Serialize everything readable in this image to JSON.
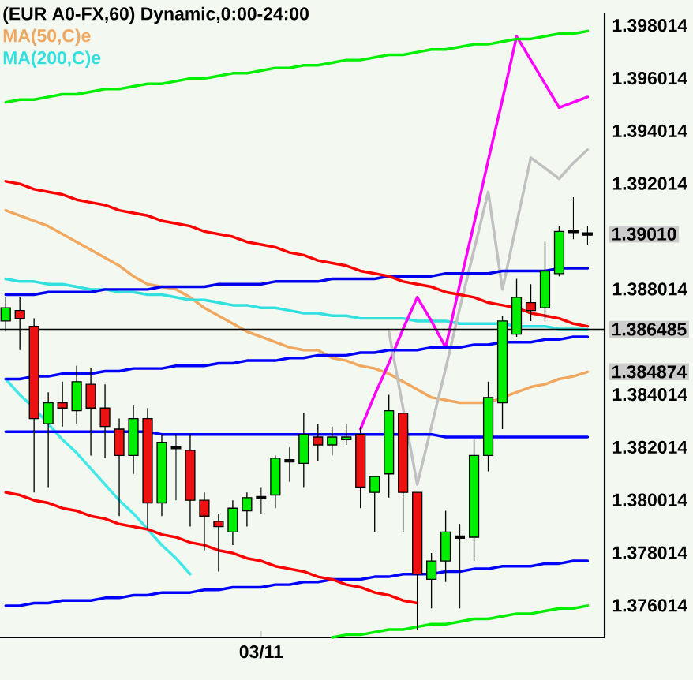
{
  "chart_data": {
    "type": "candlestick",
    "title": "(EUR A0-FX,60) Dynamic,0:00-24:00",
    "categories": [
      null,
      null,
      null,
      null,
      null,
      null,
      null,
      null,
      null,
      null,
      null,
      null,
      null,
      null,
      null,
      null,
      null,
      null,
      "03/11",
      null,
      null,
      null,
      null,
      null,
      null,
      null,
      null,
      null,
      null,
      null,
      null,
      null,
      null,
      null,
      null,
      null,
      null,
      null,
      null,
      null,
      null,
      null
    ],
    "ohlc": [
      [
        1.3868,
        1.3877,
        1.3864,
        1.3873
      ],
      [
        1.3872,
        1.3877,
        1.3857,
        1.3869
      ],
      [
        1.3866,
        1.3869,
        1.3803,
        1.3831
      ],
      [
        1.3829,
        1.3841,
        1.3805,
        1.3837
      ],
      [
        1.3837,
        1.3845,
        1.3828,
        1.3835
      ],
      [
        1.3834,
        1.3851,
        1.3829,
        1.3845
      ],
      [
        1.3844,
        1.385,
        1.3817,
        1.3835
      ],
      [
        1.3835,
        1.3844,
        1.3816,
        1.3828
      ],
      [
        1.3827,
        1.3831,
        1.3794,
        1.3817
      ],
      [
        1.3817,
        1.3836,
        1.381,
        1.3831
      ],
      [
        1.3831,
        1.3835,
        1.3789,
        1.3799
      ],
      [
        1.3799,
        1.3825,
        1.3794,
        1.3822
      ],
      [
        1.382,
        1.3825,
        1.38,
        1.382
      ],
      [
        1.3819,
        1.3825,
        1.379,
        1.38
      ],
      [
        1.38,
        1.3803,
        1.3781,
        1.3794
      ],
      [
        1.3792,
        1.3795,
        1.3773,
        1.379
      ],
      [
        1.3788,
        1.38,
        1.3783,
        1.3797
      ],
      [
        1.3796,
        1.3803,
        1.379,
        1.3801
      ],
      [
        1.3801,
        1.3805,
        1.3795,
        1.3801
      ],
      [
        1.3802,
        1.3817,
        1.3797,
        1.3816
      ],
      [
        1.3815,
        1.382,
        1.3807,
        1.3815
      ],
      [
        1.3814,
        1.3833,
        1.3805,
        1.3825
      ],
      [
        1.3824,
        1.3829,
        1.3815,
        1.3821
      ],
      [
        1.3821,
        1.3828,
        1.3817,
        1.3824
      ],
      [
        1.3823,
        1.3829,
        1.3821,
        1.3824
      ],
      [
        1.3825,
        1.3828,
        1.3797,
        1.3805
      ],
      [
        1.3803,
        1.3809,
        1.3788,
        1.3809
      ],
      [
        1.381,
        1.384,
        1.3801,
        1.3834
      ],
      [
        1.3833,
        1.3833,
        1.3788,
        1.3803
      ],
      [
        1.3803,
        1.3803,
        1.3751,
        1.3772
      ],
      [
        1.377,
        1.378,
        1.3759,
        1.3777
      ],
      [
        1.3777,
        1.3796,
        1.3769,
        1.3788
      ],
      [
        1.3786,
        1.3791,
        1.3759,
        1.3786
      ],
      [
        1.3786,
        1.3823,
        1.3777,
        1.3817
      ],
      [
        1.3817,
        1.3845,
        1.3811,
        1.3839
      ],
      [
        1.3837,
        1.387,
        1.3827,
        1.3868
      ],
      [
        1.3863,
        1.3884,
        1.3862,
        1.3877
      ],
      [
        1.3875,
        1.3882,
        1.3868,
        1.3872
      ],
      [
        1.3873,
        1.3898,
        1.3868,
        1.3887
      ],
      [
        1.3886,
        1.3904,
        1.3885,
        1.3902
      ],
      [
        1.3902,
        1.3915,
        1.3899,
        1.3902
      ],
      [
        1.3901,
        1.3904,
        1.3897,
        1.3901
      ]
    ],
    "colors": [
      "#00ee00",
      "#ee1111",
      "#ee1111",
      "#00ee00",
      "#ee1111",
      "#00ee00",
      "#ee1111",
      "#ee1111",
      "#ee1111",
      "#00ee00",
      "#ee1111",
      "#00ee00",
      "#000000",
      "#ee1111",
      "#ee1111",
      "#ee1111",
      "#00ee00",
      "#00ee00",
      "#000000",
      "#00ee00",
      "#000000",
      "#00ee00",
      "#ee1111",
      "#00ee00",
      "#00ee00",
      "#ee1111",
      "#00ee00",
      "#00ee00",
      "#ee1111",
      "#ee1111",
      "#00ee00",
      "#00ee00",
      "#000000",
      "#00ee00",
      "#00ee00",
      "#00ee00",
      "#00ee00",
      "#ee1111",
      "#00ee00",
      "#00ee00",
      "#000000",
      "#000000"
    ],
    "value_labels": [
      null,
      null,
      null,
      null,
      null,
      null,
      null,
      null,
      null,
      null,
      null,
      null,
      null,
      null,
      null,
      null,
      null,
      null,
      null,
      null,
      null,
      null,
      null,
      null,
      null,
      null,
      null,
      null,
      null,
      null,
      null,
      null,
      null,
      null,
      null,
      null,
      null,
      null,
      null,
      null,
      null,
      "1.39010"
    ],
    "series": [
      {
        "type": "line",
        "name": "MA(50,C)e",
        "color": "#f0a860",
        "values": [
          1.391,
          1.3908,
          1.3906,
          1.3904,
          1.3901,
          1.3898,
          1.3895,
          1.3892,
          1.3889,
          1.3885,
          1.3882,
          1.3881,
          1.388,
          1.3877,
          1.3873,
          1.387,
          1.3867,
          1.3864,
          1.3862,
          1.386,
          1.3858,
          1.3857,
          1.3857,
          1.3854,
          1.3853,
          1.3851,
          1.385,
          1.3848,
          1.3845,
          1.3842,
          1.3839,
          1.3838,
          1.3837,
          1.3837,
          1.3837,
          1.3839,
          1.3841,
          1.3843,
          1.3844,
          1.3846,
          1.3847,
          1.384874
        ],
        "value_labels": [
          null,
          null,
          null,
          null,
          null,
          null,
          null,
          null,
          null,
          null,
          null,
          null,
          null,
          null,
          null,
          null,
          null,
          null,
          null,
          null,
          null,
          null,
          null,
          null,
          null,
          null,
          null,
          null,
          null,
          null,
          null,
          null,
          null,
          null,
          null,
          null,
          null,
          null,
          null,
          null,
          null,
          "1.384874"
        ]
      },
      {
        "type": "line",
        "name": "MA(200,C)e",
        "color": "#33e0e0",
        "values": [
          1.3884,
          1.3883,
          1.3883,
          1.3882,
          1.3882,
          1.3881,
          1.388,
          1.388,
          1.3879,
          1.3879,
          1.3878,
          1.3878,
          1.3877,
          1.3876,
          1.3876,
          1.3875,
          1.3874,
          1.3874,
          1.3873,
          1.3873,
          1.3872,
          1.3871,
          1.3871,
          1.387,
          1.387,
          1.3869,
          1.3869,
          1.3869,
          1.3869,
          1.3868,
          1.3868,
          1.3868,
          1.3867,
          1.3867,
          1.3867,
          1.3867,
          1.3866,
          1.3866,
          1.3866,
          1.3865,
          1.3865,
          1.386485
        ],
        "value_labels": [
          null,
          null,
          null,
          null,
          null,
          null,
          null,
          null,
          null,
          null,
          null,
          null,
          null,
          null,
          null,
          null,
          null,
          null,
          null,
          null,
          null,
          null,
          null,
          null,
          null,
          null,
          null,
          null,
          null,
          null,
          null,
          null,
          null,
          null,
          null,
          null,
          null,
          null,
          null,
          null,
          null,
          "1.386485"
        ]
      },
      {
        "type": "line",
        "color": "#40e8e8",
        "values": [
          1.3846,
          1.384,
          1.3835,
          1.3829,
          1.3823,
          1.3818,
          1.3812,
          1.3806,
          1.38,
          1.3795,
          1.3789,
          1.3783,
          1.3778,
          1.3772,
          null,
          null,
          null,
          null,
          null,
          null,
          null,
          null,
          null,
          null,
          null,
          null,
          null,
          null,
          null,
          null,
          null,
          null,
          null,
          null,
          null,
          null,
          null,
          null,
          null,
          null,
          null,
          null
        ]
      },
      {
        "type": "line",
        "color": "#ff00ff",
        "values": [
          null,
          null,
          null,
          null,
          null,
          null,
          null,
          null,
          null,
          null,
          null,
          null,
          null,
          null,
          null,
          null,
          null,
          null,
          null,
          null,
          null,
          null,
          null,
          null,
          null,
          1.3827,
          1.384,
          1.3852,
          1.3865,
          1.3877,
          1.3868,
          1.3858,
          1.3882,
          1.3905,
          1.3929,
          1.3952,
          1.3976,
          1.3967,
          1.3958,
          1.3949,
          1.3951,
          1.3953
        ]
      },
      {
        "type": "line",
        "color": "#c0c0c0",
        "values": [
          null,
          null,
          null,
          null,
          null,
          null,
          null,
          null,
          null,
          null,
          null,
          null,
          null,
          null,
          null,
          null,
          null,
          null,
          null,
          null,
          null,
          null,
          null,
          null,
          null,
          null,
          null,
          1.3864,
          1.3835,
          1.3806,
          1.3828,
          1.385,
          1.3873,
          1.3895,
          1.3917,
          1.388,
          1.3905,
          1.393,
          1.3926,
          1.3922,
          1.3928,
          1.3933
        ]
      },
      {
        "type": "line",
        "color": "#0000ee",
        "values": [
          1.3878,
          1.3878,
          1.3878,
          1.3879,
          1.3879,
          1.3879,
          1.3879,
          1.388,
          1.388,
          1.388,
          1.388,
          1.3881,
          1.3881,
          1.3881,
          1.3881,
          1.3882,
          1.3882,
          1.3882,
          1.3882,
          1.3883,
          1.3883,
          1.3883,
          1.3883,
          1.3884,
          1.3884,
          1.3884,
          1.3884,
          1.3885,
          1.3885,
          1.3885,
          1.3885,
          1.3886,
          1.3886,
          1.3886,
          1.3886,
          1.3887,
          1.3887,
          1.3887,
          1.3887,
          1.3888,
          1.3888,
          1.3888
        ]
      },
      {
        "type": "line",
        "color": "#0000ff",
        "values": [
          1.3846,
          1.3846,
          1.3847,
          1.3847,
          1.3848,
          1.3848,
          1.3848,
          1.3849,
          1.3849,
          1.385,
          1.385,
          1.385,
          1.3851,
          1.3851,
          1.3851,
          1.3852,
          1.3852,
          1.3853,
          1.3853,
          1.3853,
          1.3854,
          1.3854,
          1.3855,
          1.3855,
          1.3855,
          1.3856,
          1.3856,
          1.3857,
          1.3857,
          1.3857,
          1.3858,
          1.3858,
          1.3858,
          1.3859,
          1.3859,
          1.386,
          1.386,
          1.386,
          1.3861,
          1.3861,
          1.3862,
          1.3862
        ]
      },
      {
        "type": "line",
        "color": "#0000ff",
        "values": [
          1.3826,
          1.3826,
          1.3826,
          1.3826,
          1.3826,
          1.3826,
          1.3826,
          1.3826,
          1.3826,
          1.3826,
          1.3826,
          1.3825,
          1.3825,
          1.3825,
          1.3825,
          1.3825,
          1.3825,
          1.3825,
          1.3825,
          1.3825,
          1.3825,
          1.3825,
          1.3825,
          1.3825,
          1.3825,
          1.3825,
          1.3825,
          1.3825,
          1.3825,
          1.3825,
          1.3825,
          1.3824,
          1.3824,
          1.3824,
          1.3824,
          1.3824,
          1.3824,
          1.3824,
          1.3824,
          1.3824,
          1.3824,
          1.3824
        ]
      },
      {
        "type": "line",
        "color": "#0000ff",
        "values": [
          1.376,
          1.376,
          1.3761,
          1.3761,
          1.3762,
          1.3762,
          1.3762,
          1.3763,
          1.3763,
          1.3764,
          1.3764,
          1.3765,
          1.3765,
          1.3765,
          1.3766,
          1.3766,
          1.3767,
          1.3767,
          1.3767,
          1.3768,
          1.3768,
          1.3769,
          1.3769,
          1.377,
          1.377,
          1.377,
          1.3771,
          1.3771,
          1.3772,
          1.3772,
          1.3772,
          1.3773,
          1.3773,
          1.3774,
          1.3774,
          1.3775,
          1.3775,
          1.3775,
          1.3776,
          1.3776,
          1.3777,
          1.3777
        ]
      },
      {
        "type": "line",
        "color": "#ff0000",
        "values": [
          1.3921,
          1.392,
          1.3918,
          1.3917,
          1.3916,
          1.3914,
          1.3913,
          1.3912,
          1.391,
          1.3909,
          1.3908,
          1.3906,
          1.3905,
          1.3904,
          1.3902,
          1.3901,
          1.39,
          1.3898,
          1.3897,
          1.3896,
          1.3894,
          1.3893,
          1.3891,
          1.389,
          1.3889,
          1.3887,
          1.3886,
          1.3885,
          1.3883,
          1.3882,
          1.3881,
          1.3879,
          1.3878,
          1.3877,
          1.3875,
          1.3874,
          1.3873,
          1.3871,
          1.387,
          1.3869,
          1.3867,
          1.3866
        ]
      },
      {
        "type": "line",
        "color": "#ff0000",
        "values": [
          1.3803,
          1.3802,
          1.38,
          1.3799,
          1.3797,
          1.3796,
          1.3794,
          1.3793,
          1.3791,
          1.379,
          1.3789,
          1.3787,
          1.3786,
          1.3784,
          1.3783,
          1.3781,
          1.378,
          1.3778,
          1.3777,
          1.3775,
          1.3774,
          1.3773,
          1.3771,
          1.377,
          1.3768,
          1.3767,
          1.3765,
          1.3764,
          1.3762,
          1.3761,
          null,
          null,
          null,
          null,
          null,
          null,
          null,
          null,
          null,
          null,
          null,
          null
        ]
      },
      {
        "type": "line",
        "color": "#00ee00",
        "values": [
          1.3951,
          1.3952,
          1.3952,
          1.3953,
          1.3954,
          1.3954,
          1.3955,
          1.3956,
          1.3956,
          1.3957,
          1.3958,
          1.3958,
          1.3959,
          1.396,
          1.396,
          1.3961,
          1.3962,
          1.3962,
          1.3963,
          1.3964,
          1.3964,
          1.3965,
          1.3965,
          1.3966,
          1.3967,
          1.3967,
          1.3968,
          1.3969,
          1.3969,
          1.397,
          1.3971,
          1.3971,
          1.3972,
          1.3973,
          1.3973,
          1.3974,
          1.3975,
          1.3975,
          1.3976,
          1.3977,
          1.3977,
          1.3978
        ]
      },
      {
        "type": "line",
        "color": "#00ee00",
        "values": [
          null,
          null,
          null,
          null,
          null,
          null,
          null,
          null,
          null,
          null,
          null,
          null,
          null,
          null,
          null,
          null,
          null,
          null,
          null,
          null,
          null,
          null,
          null,
          1.3748,
          1.3749,
          1.3749,
          1.375,
          1.3751,
          1.3751,
          1.3752,
          1.3753,
          1.3753,
          1.3754,
          1.3755,
          1.3755,
          1.3756,
          1.3757,
          1.3757,
          1.3758,
          1.3759,
          1.3759,
          1.376
        ]
      }
    ],
    "ylim": [
      1.3748,
      1.3985
    ],
    "yticks": [
      1.376014,
      1.378014,
      1.380014,
      1.382014,
      1.384014,
      1.388014,
      1.392014,
      1.394014,
      1.396014,
      1.398014
    ],
    "ref_lines": [
      {
        "axis": "y",
        "value": 1.386485,
        "color": "#000000"
      }
    ]
  }
}
